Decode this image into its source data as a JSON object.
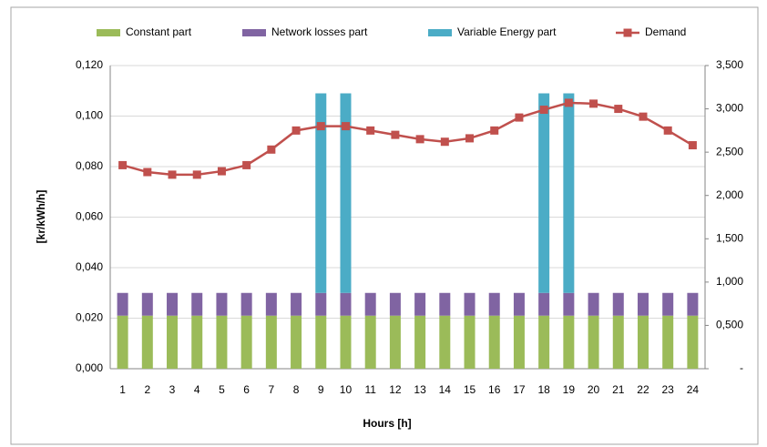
{
  "chart_data": {
    "type": "bar_line",
    "x_label": "Hours [h]",
    "y_label": "[kr/kWh/h]",
    "categories": [
      1,
      2,
      3,
      4,
      5,
      6,
      7,
      8,
      9,
      10,
      11,
      12,
      13,
      14,
      15,
      16,
      17,
      18,
      19,
      20,
      21,
      22,
      23,
      24
    ],
    "series": [
      {
        "name": "Constant part",
        "color": "#9bbb59",
        "type": "bar",
        "values": [
          0.021,
          0.021,
          0.021,
          0.021,
          0.021,
          0.021,
          0.021,
          0.021,
          0.021,
          0.021,
          0.021,
          0.021,
          0.021,
          0.021,
          0.021,
          0.021,
          0.021,
          0.021,
          0.021,
          0.021,
          0.021,
          0.021,
          0.021,
          0.021
        ]
      },
      {
        "name": "Network losses part",
        "color": "#8064a2",
        "type": "bar",
        "values": [
          0.009,
          0.009,
          0.009,
          0.009,
          0.009,
          0.009,
          0.009,
          0.009,
          0.009,
          0.009,
          0.009,
          0.009,
          0.009,
          0.009,
          0.009,
          0.009,
          0.009,
          0.009,
          0.009,
          0.009,
          0.009,
          0.009,
          0.009,
          0.009
        ]
      },
      {
        "name": "Variable Energy part",
        "color": "#4bacc6",
        "type": "bar",
        "values": [
          0,
          0,
          0,
          0,
          0,
          0,
          0,
          0,
          0.079,
          0.079,
          0,
          0,
          0,
          0,
          0,
          0,
          0,
          0.079,
          0.079,
          0,
          0,
          0,
          0,
          0
        ]
      },
      {
        "name": "Demand",
        "color": "#c0504d",
        "type": "line",
        "axis": "y2",
        "values": [
          2350,
          2270,
          2240,
          2240,
          2280,
          2350,
          2530,
          2750,
          2800,
          2800,
          2750,
          2700,
          2650,
          2620,
          2660,
          2750,
          2900,
          2990,
          3070,
          3060,
          3000,
          2910,
          2750,
          2580
        ]
      }
    ],
    "ylim": [
      0,
      0.12
    ],
    "yticks": [
      {
        "value": 0,
        "label": "0,000"
      },
      {
        "value": 0.02,
        "label": "0,020"
      },
      {
        "value": 0.04,
        "label": "0,040"
      },
      {
        "value": 0.06,
        "label": "0,060"
      },
      {
        "value": 0.08,
        "label": "0,080"
      },
      {
        "value": 0.1,
        "label": "0,100"
      },
      {
        "value": 0.12,
        "label": "0,120"
      }
    ],
    "y2lim": [
      0,
      3500
    ],
    "y2ticks": [
      {
        "value": 0,
        "label": "-"
      },
      {
        "value": 500,
        "label": "0,500"
      },
      {
        "value": 1000,
        "label": "1,000"
      },
      {
        "value": 1500,
        "label": "1,500"
      },
      {
        "value": 2000,
        "label": "2,000"
      },
      {
        "value": 2500,
        "label": "2,500"
      },
      {
        "value": 3000,
        "label": "3,000"
      },
      {
        "value": 3500,
        "label": "3,500"
      }
    ],
    "grid": true,
    "legend": "top"
  }
}
